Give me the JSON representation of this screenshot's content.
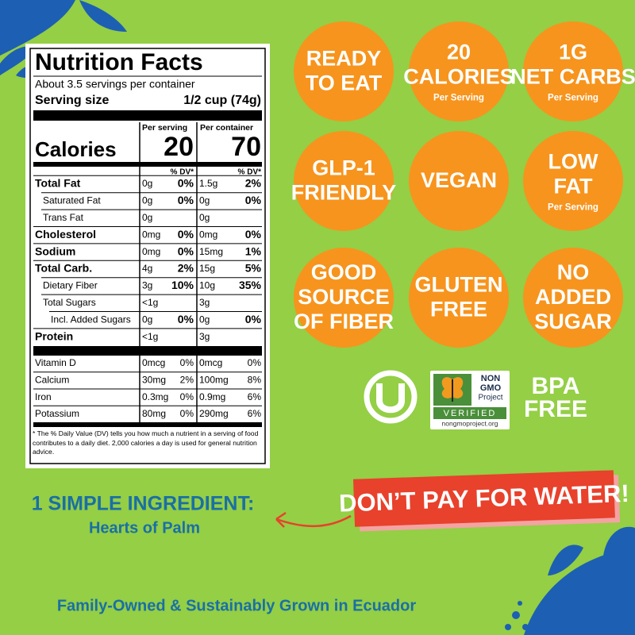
{
  "nutrition_facts": {
    "title": "Nutrition Facts",
    "servings": "About 3.5 servings per container",
    "serving_size_label": "Serving size",
    "serving_size": "1/2 cup (74g)",
    "per_serving_header": "Per serving",
    "per_container_header": "Per container",
    "calories_label": "Calories",
    "calories_per_serving": 20,
    "calories_per_container": 70,
    "dv_header": "% DV*",
    "nutrients": [
      {
        "name": "Total Fat",
        "serving_amount": "0g",
        "serving_dv": "0%",
        "container_amount": "1.5g",
        "container_dv": "2%"
      },
      {
        "name": "Saturated Fat",
        "serving_amount": "0g",
        "serving_dv": "0%",
        "container_amount": "0g",
        "container_dv": "0%"
      },
      {
        "name": "Trans Fat",
        "serving_amount": "0g",
        "container_amount": "0g"
      },
      {
        "name": "Cholesterol",
        "serving_amount": "0mg",
        "serving_dv": "0%",
        "container_amount": "0mg",
        "container_dv": "0%"
      },
      {
        "name": "Sodium",
        "serving_amount": "0mg",
        "serving_dv": "0%",
        "container_amount": "15mg",
        "container_dv": "1%"
      },
      {
        "name": "Total Carb.",
        "serving_amount": "4g",
        "serving_dv": "2%",
        "container_amount": "15g",
        "container_dv": "5%"
      },
      {
        "name": "Dietary Fiber",
        "serving_amount": "3g",
        "serving_dv": "10%",
        "container_amount": "10g",
        "container_dv": "35%"
      },
      {
        "name": "Total Sugars",
        "serving_amount": "<1g",
        "container_amount": "3g"
      },
      {
        "name": "Incl. Added Sugars",
        "serving_amount": "0g",
        "serving_dv": "0%",
        "container_amount": "0g",
        "container_dv": "0%"
      },
      {
        "name": "Protein",
        "serving_amount": "<1g",
        "container_amount": "3g"
      }
    ],
    "vitamins": [
      {
        "name": "Vitamin D",
        "serving_amount": "0mcg",
        "serving_dv": "0%",
        "container_amount": "0mcg",
        "container_dv": "0%"
      },
      {
        "name": "Calcium",
        "serving_amount": "30mg",
        "serving_dv": "2%",
        "container_amount": "100mg",
        "container_dv": "8%"
      },
      {
        "name": "Iron",
        "serving_amount": "0.3mg",
        "serving_dv": "0%",
        "container_amount": "0.9mg",
        "container_dv": "6%"
      },
      {
        "name": "Potassium",
        "serving_amount": "80mg",
        "serving_dv": "0%",
        "container_amount": "290mg",
        "container_dv": "6%"
      }
    ],
    "footnote": "* The % Daily Value (DV) tells you how much a nutrient in a serving of food contributes to a daily diet. 2,000 calories a day is used for general nutrition advice."
  },
  "badges": [
    {
      "lines": [
        "READY",
        "TO EAT"
      ]
    },
    {
      "lines": [
        "20",
        "CALORIES"
      ],
      "sub": "Per Serving"
    },
    {
      "lines": [
        "1G",
        "NET CARBS"
      ],
      "sub": "Per Serving"
    },
    {
      "lines": [
        "GLP-1",
        "FRIENDLY"
      ]
    },
    {
      "lines": [
        "VEGAN"
      ]
    },
    {
      "lines": [
        "LOW",
        "FAT"
      ],
      "sub": "Per Serving"
    },
    {
      "lines": [
        "GOOD",
        "SOURCE",
        "OF FIBER"
      ]
    },
    {
      "lines": [
        "GLUTEN",
        "FREE"
      ]
    },
    {
      "lines": [
        "NO",
        "ADDED",
        "SUGAR"
      ]
    }
  ],
  "certifications": {
    "non_gmo": {
      "line1": "NON",
      "line2": "GMO",
      "line3": "Project",
      "verified": "VERIFIED",
      "url": "nongmoproject.org"
    },
    "bpa": [
      "BPA",
      "FREE"
    ]
  },
  "banner": "DON’T PAY FOR WATER!",
  "ingredient": {
    "heading": "1 SIMPLE INGREDIENT:",
    "name": "Hearts of Palm"
  },
  "footer": "Family-Owned & Sustainably Grown in Ecuador"
}
